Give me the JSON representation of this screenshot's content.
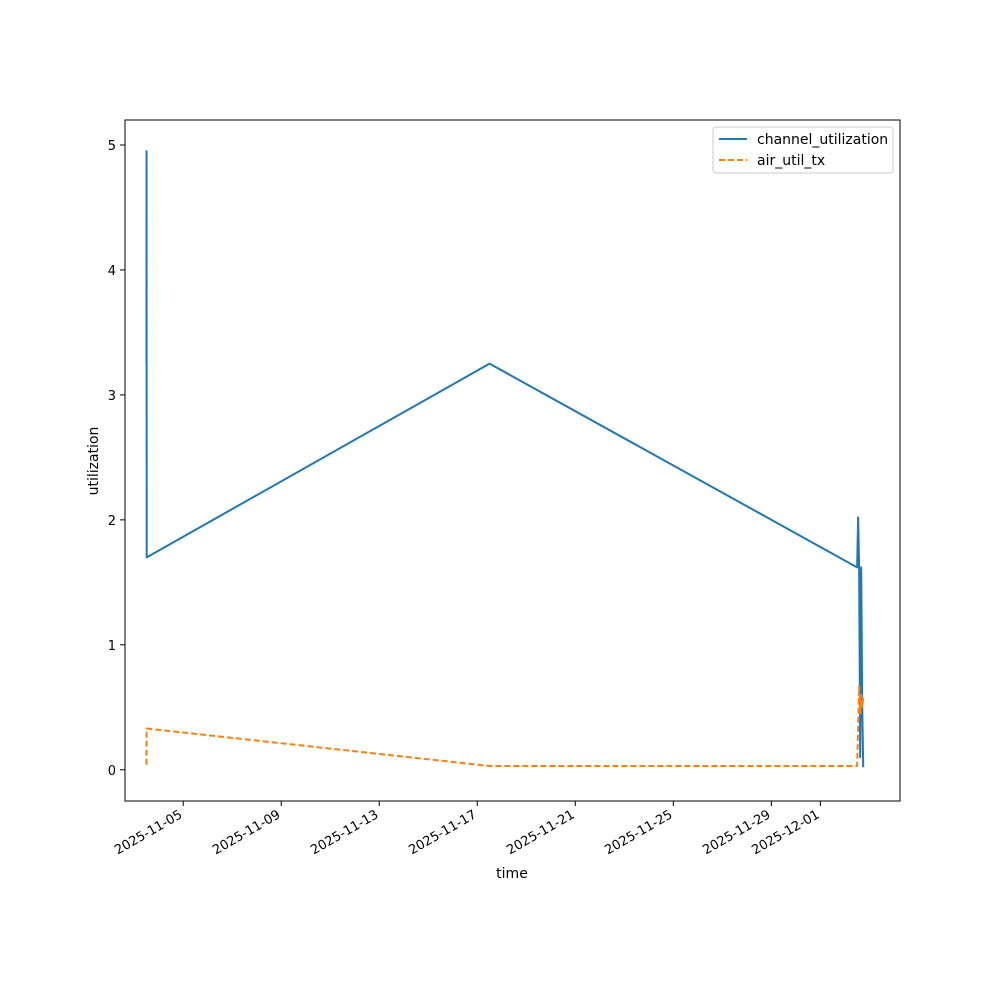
{
  "chart_data": {
    "type": "line",
    "title": "",
    "xlabel": "time",
    "ylabel": "utilization",
    "x_type": "date",
    "xlim": [
      "2025-11-02T15:00",
      "2025-12-04T06:00"
    ],
    "ylim": [
      -0.25,
      5.2
    ],
    "x_ticks": [
      "2025-11-05",
      "2025-11-09",
      "2025-11-13",
      "2025-11-17",
      "2025-11-21",
      "2025-11-25",
      "2025-11-29",
      "2025-12-01"
    ],
    "y_ticks": [
      "0",
      "1",
      "2",
      "3",
      "4",
      "5"
    ],
    "grid": false,
    "legend_position": "top-right",
    "series": [
      {
        "name": "channel_utilization",
        "color": "#1f77b4",
        "style": "solid",
        "x": [
          "2025-11-03T12:00",
          "2025-11-03T12:05",
          "2025-11-03T12:10",
          "2025-11-03T12:15",
          "2025-11-17T12:00",
          "2025-12-02T12:00",
          "2025-12-02T13:00",
          "2025-12-02T14:00",
          "2025-12-02T15:00",
          "2025-12-02T16:00",
          "2025-12-02T17:00",
          "2025-12-02T18:00"
        ],
        "y": [
          3.25,
          4.95,
          3.25,
          1.7,
          3.25,
          1.62,
          2.02,
          1.6,
          0.1,
          1.62,
          0.5,
          0.02
        ]
      },
      {
        "name": "air_util_tx",
        "color": "#ff7f0e",
        "style": "dashed",
        "x": [
          "2025-11-03T12:00",
          "2025-11-03T12:10",
          "2025-11-17T12:00",
          "2025-12-02T12:00",
          "2025-12-02T14:00",
          "2025-12-02T15:00",
          "2025-12-02T16:00",
          "2025-12-02T17:00",
          "2025-12-02T18:00"
        ],
        "y": [
          0.04,
          0.33,
          0.03,
          0.03,
          0.67,
          0.45,
          0.6,
          0.5,
          0.58
        ]
      }
    ]
  }
}
